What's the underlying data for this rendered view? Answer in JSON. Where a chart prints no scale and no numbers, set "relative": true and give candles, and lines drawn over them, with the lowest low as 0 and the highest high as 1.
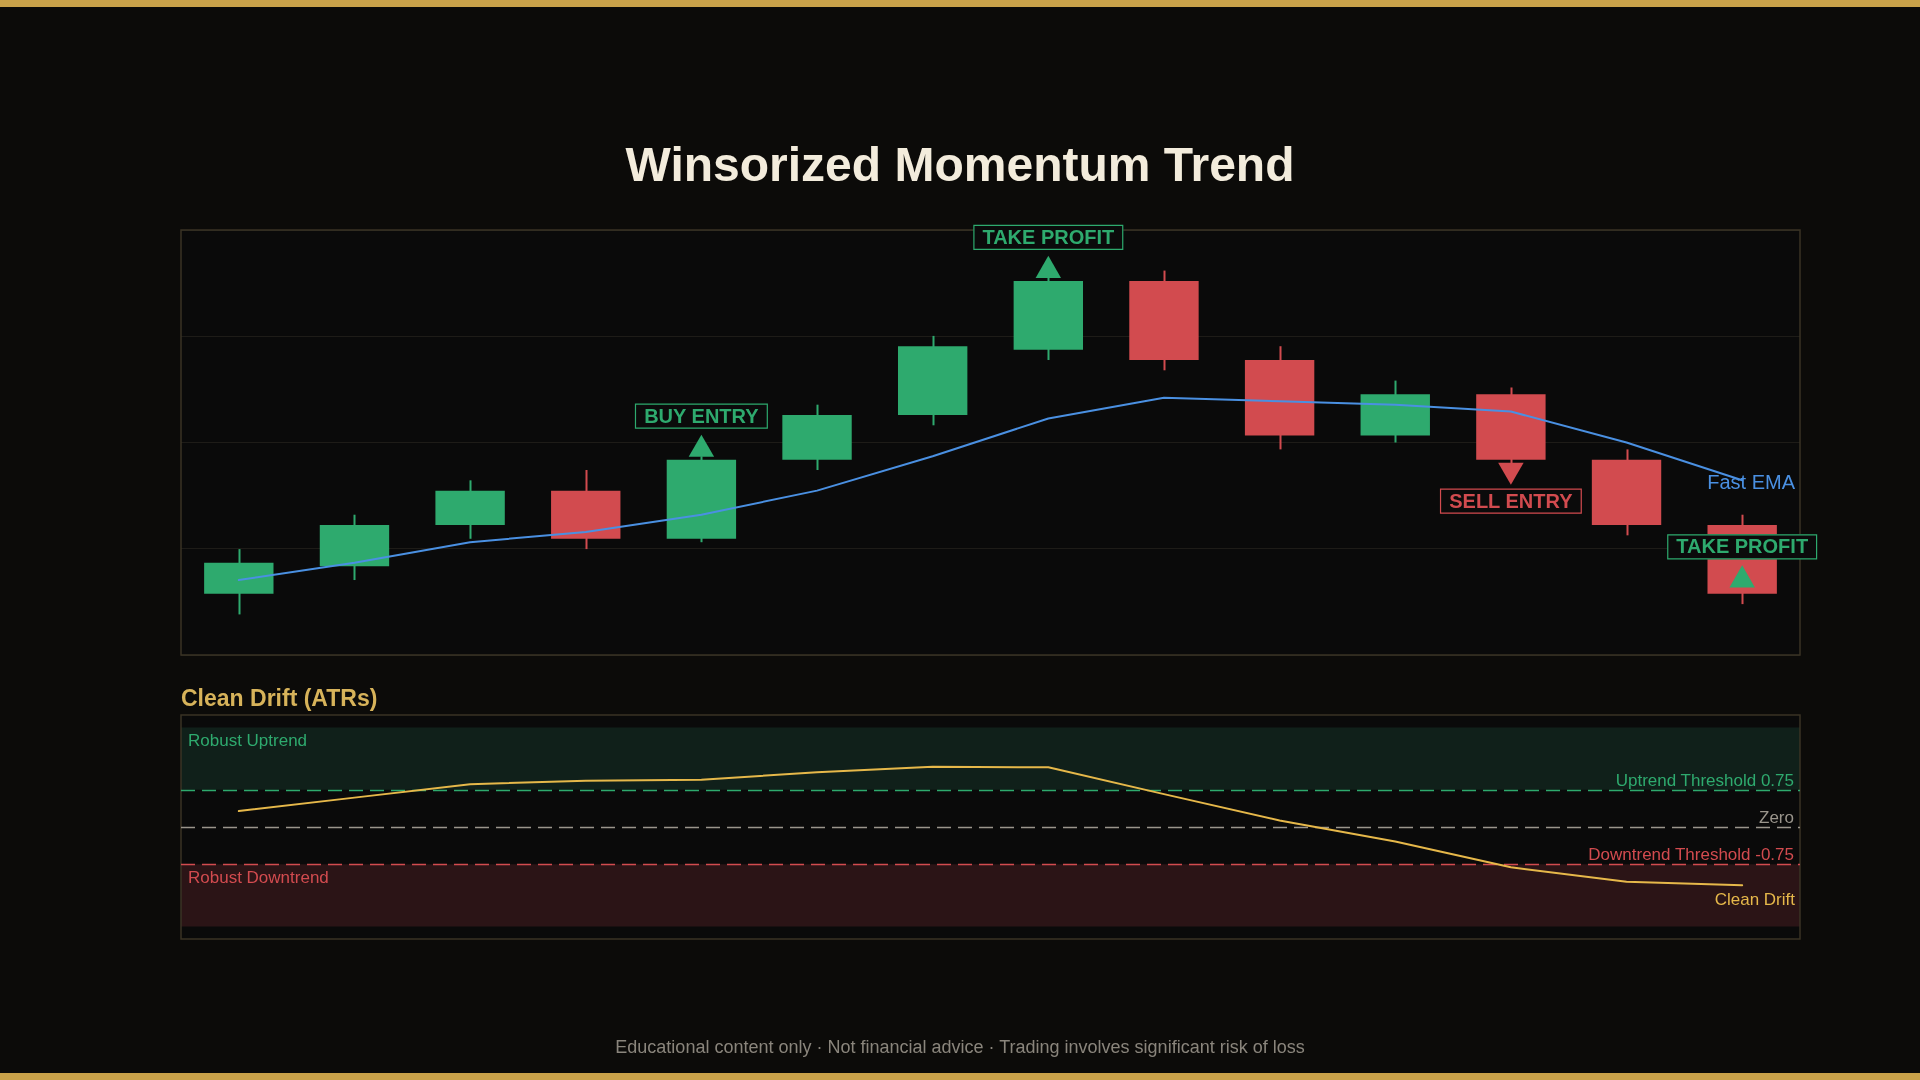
{
  "chart_data": [
    {
      "type": "candlestick",
      "title": "Winsorized Momentum Trend",
      "categories": [
        null,
        null,
        null,
        null,
        null,
        null,
        null,
        null,
        null,
        null,
        null,
        null,
        null,
        null
      ],
      "ohlc": [
        [
          0.06,
          0.19,
          0,
          0.15
        ],
        [
          0.14,
          0.29,
          0.1,
          0.26
        ],
        [
          0.26,
          0.39,
          0.22,
          0.36
        ],
        [
          0.36,
          0.42,
          0.19,
          0.22
        ],
        [
          0.22,
          0.46,
          0.21,
          0.45
        ],
        [
          0.45,
          0.61,
          0.42,
          0.58
        ],
        [
          0.58,
          0.81,
          0.55,
          0.78
        ],
        [
          0.77,
          0.98,
          0.74,
          0.97
        ],
        [
          0.97,
          1,
          0.71,
          0.74
        ],
        [
          0.74,
          0.78,
          0.48,
          0.52
        ],
        [
          0.52,
          0.68,
          0.5,
          0.64
        ],
        [
          0.64,
          0.66,
          0.44,
          0.45
        ],
        [
          0.45,
          0.48,
          0.23,
          0.26
        ],
        [
          0.26,
          0.29,
          0.03,
          0.06
        ]
      ],
      "colors": [
        "#2eaa6e",
        "#2eaa6e",
        "#2eaa6e",
        "#d24b4f",
        "#2eaa6e",
        "#2eaa6e",
        "#2eaa6e",
        "#2eaa6e",
        "#d24b4f",
        "#d24b4f",
        "#2eaa6e",
        "#d24b4f",
        "#d24b4f",
        "#d24b4f"
      ],
      "relative": true,
      "grid": "y",
      "tick_labels": false,
      "series": [
        {
          "type": "line",
          "name": "Fast EMA",
          "color": "#4a90e2",
          "values": [
            0.1,
            0.15,
            0.21,
            0.24,
            0.29,
            0.36,
            0.46,
            0.57,
            0.63,
            0.62,
            0.61,
            0.59,
            0.5,
            0.39
          ]
        },
        {
          "type": "scatter",
          "name": "BUY ENTRY",
          "color": "#2eaa6e",
          "marker": "triangle",
          "values": [
            null,
            null,
            null,
            null,
            0.48,
            null,
            null,
            null,
            null,
            null,
            null,
            null,
            null,
            null
          ]
        },
        {
          "type": "scatter",
          "name": "TAKE PROFIT",
          "color": "#2eaa6e",
          "marker": "triangle",
          "values": [
            null,
            null,
            null,
            null,
            null,
            null,
            null,
            1,
            null,
            null,
            null,
            null,
            null,
            0.1
          ]
        },
        {
          "type": "scatter",
          "name": "SELL ENTRY",
          "color": "#d24b4f",
          "marker": "triangle",
          "values": [
            null,
            null,
            null,
            null,
            null,
            null,
            null,
            null,
            null,
            null,
            null,
            0.42,
            null,
            null
          ]
        }
      ]
    },
    {
      "type": "line",
      "title": "Clean Drift (ATRs)",
      "categories": [
        null,
        null,
        null,
        null,
        null,
        null,
        null,
        null,
        null,
        null,
        null,
        null,
        null,
        null
      ],
      "series": [
        {
          "name": "Clean Drift",
          "color": "#e6b84a",
          "values": [
            0.32,
            0.59,
            0.86,
            0.93,
            0.95,
            1.1,
            1.21,
            1.2,
            0.66,
            0.13,
            -0.29,
            -0.81,
            -1.1,
            -1.17
          ]
        }
      ],
      "ylim": [
        -2.25,
        2.25
      ],
      "tick_labels": false,
      "ref_lines": [
        {
          "axis": "y",
          "value": 0.75,
          "label": "Uptrend Threshold 0.75",
          "color": "#2eaa6e",
          "line_style": "dashed"
        },
        {
          "axis": "y",
          "value": 0,
          "label": "Zero",
          "color": "#9a958c",
          "line_style": "dashed"
        },
        {
          "axis": "y",
          "value": -0.75,
          "label": "Downtrend Threshold -0.75",
          "color": "#d24b4f",
          "line_style": "dashed"
        }
      ],
      "bands": [
        {
          "axis": "y",
          "from": 0.75,
          "to": 2,
          "label": "Robust Uptrend",
          "color": "#10201a"
        },
        {
          "axis": "y",
          "from": -2,
          "to": -0.75,
          "label": "Robust Downtrend",
          "color": "#2b1416"
        }
      ],
      "annotations": [
        "Educational content only · Not financial advice · Trading involves significant risk of loss"
      ]
    }
  ]
}
